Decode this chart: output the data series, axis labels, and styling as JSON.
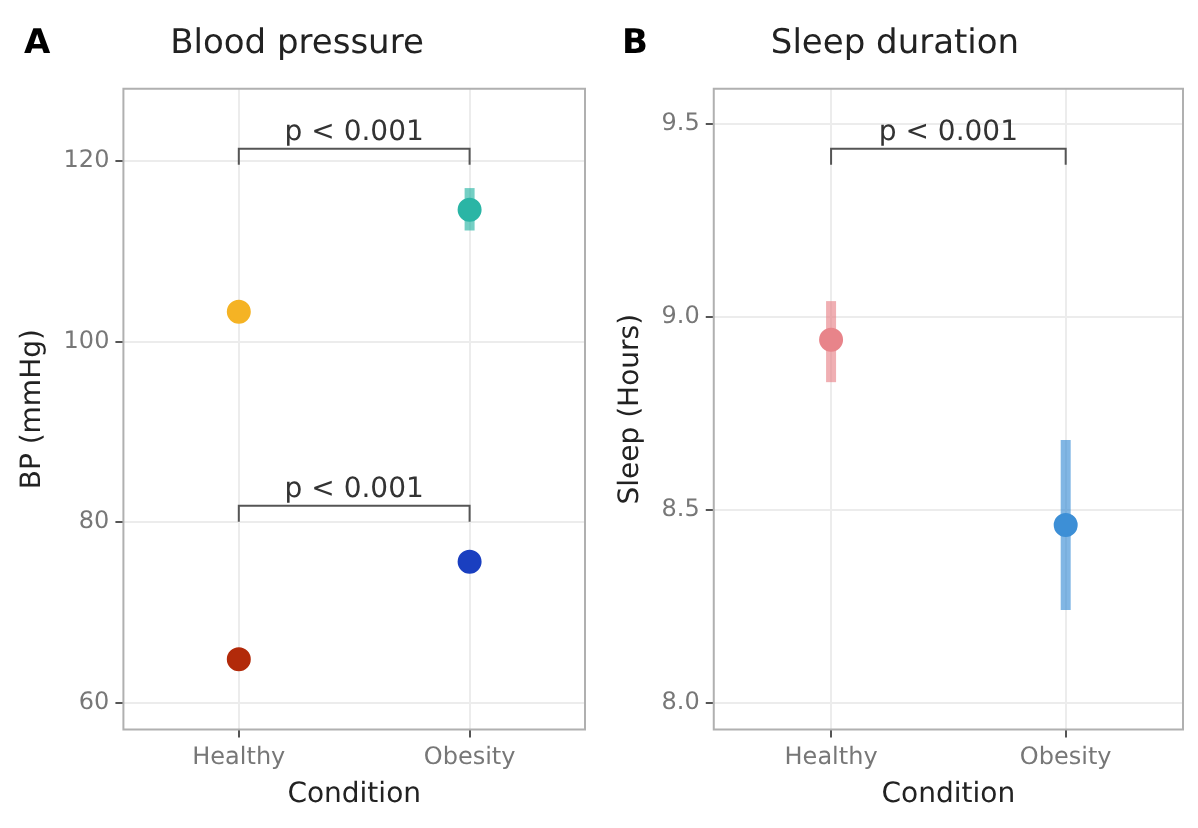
{
  "chart_data": [
    {
      "type": "scatter",
      "title": "Blood pressure",
      "xlabel": "Condition",
      "ylabel": "BP (mmHg)",
      "categories": [
        "Healthy",
        "Obesity"
      ],
      "series": [
        {
          "values": [
            103.3,
            114.6
          ],
          "colors": [
            "#f5b324",
            "#2ab5a5"
          ],
          "errors": [
            null,
            [
              112.3,
              117
            ]
          ]
        },
        {
          "values": [
            64.8,
            75.6
          ],
          "colors": [
            "#b22a0a",
            "#1a3fc0"
          ]
        }
      ],
      "ylim": [
        57,
        128
      ],
      "yticks": [
        60,
        80,
        100,
        120
      ],
      "grid": true,
      "marker": "circle",
      "annotations": [
        "A",
        "p < 0.001",
        "p < 0.001"
      ]
    },
    {
      "type": "scatter",
      "title": "Sleep duration",
      "xlabel": "Condition",
      "ylabel": "Sleep (Hours)",
      "categories": [
        "Healthy",
        "Obesity"
      ],
      "series": [
        {
          "values": [
            8.94,
            8.46
          ],
          "colors": [
            "#e8848a",
            "#3d8fd6"
          ],
          "errors": [
            [
              8.83,
              9.04
            ],
            [
              8.24,
              8.68
            ]
          ]
        }
      ],
      "ylim": [
        7.93,
        9.59
      ],
      "yticks": [
        {
          "value": 8,
          "label": "8.0"
        },
        8.5,
        {
          "value": 9,
          "label": "9.0"
        },
        9.5
      ],
      "grid": true,
      "marker": "circle",
      "annotations": [
        "B",
        "p < 0.001"
      ]
    }
  ]
}
